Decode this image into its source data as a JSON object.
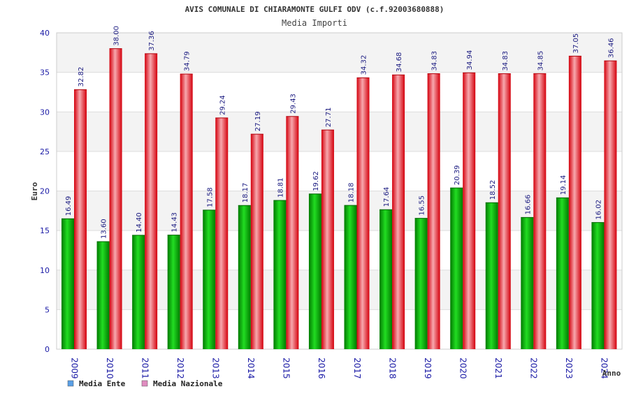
{
  "chart_data": {
    "type": "bar",
    "title": "AVIS COMUNALE DI CHIARAMONTE GULFI ODV (c.f.92003680888)",
    "subtitle": "Media Importi",
    "xlabel": "Anno",
    "ylabel": "Euro",
    "ylim": [
      0,
      40
    ],
    "yticks": [
      0,
      5,
      10,
      15,
      20,
      25,
      30,
      35,
      40
    ],
    "grid": true,
    "legend_position": "bottom-left",
    "categories": [
      "2009",
      "2010",
      "2011",
      "2012",
      "2013",
      "2014",
      "2015",
      "2016",
      "2017",
      "2018",
      "2019",
      "2020",
      "2021",
      "2022",
      "2023",
      "2024"
    ],
    "series": [
      {
        "name": "Media Ente",
        "legend_color": "#5aa0e6",
        "bar_color": "#00b400",
        "values": [
          16.49,
          13.6,
          14.4,
          14.43,
          17.58,
          18.17,
          18.81,
          19.62,
          18.18,
          17.64,
          16.55,
          20.39,
          18.52,
          16.66,
          19.14,
          16.02
        ],
        "labels": [
          "16.49",
          "13.60",
          "14.40",
          "14.43",
          "17.58",
          "18.17",
          "18.81",
          "19.62",
          "18.18",
          "17.64",
          "16.55",
          "20.39",
          "18.52",
          "16.66",
          "19.14",
          "16.02"
        ]
      },
      {
        "name": "Media Nazionale",
        "legend_color": "#e08cc0",
        "bar_color": "#e8101e",
        "values": [
          32.82,
          38.0,
          37.36,
          34.79,
          29.24,
          27.19,
          29.43,
          27.71,
          34.32,
          34.68,
          34.83,
          34.94,
          34.83,
          34.85,
          37.05,
          36.46
        ],
        "labels": [
          "32.82",
          "38.00",
          "37.36",
          "34.79",
          "29.24",
          "27.19",
          "29.43",
          "27.71",
          "34.32",
          "34.68",
          "34.83",
          "34.94",
          "34.83",
          "34.85",
          "37.05",
          "36.46"
        ]
      }
    ]
  }
}
